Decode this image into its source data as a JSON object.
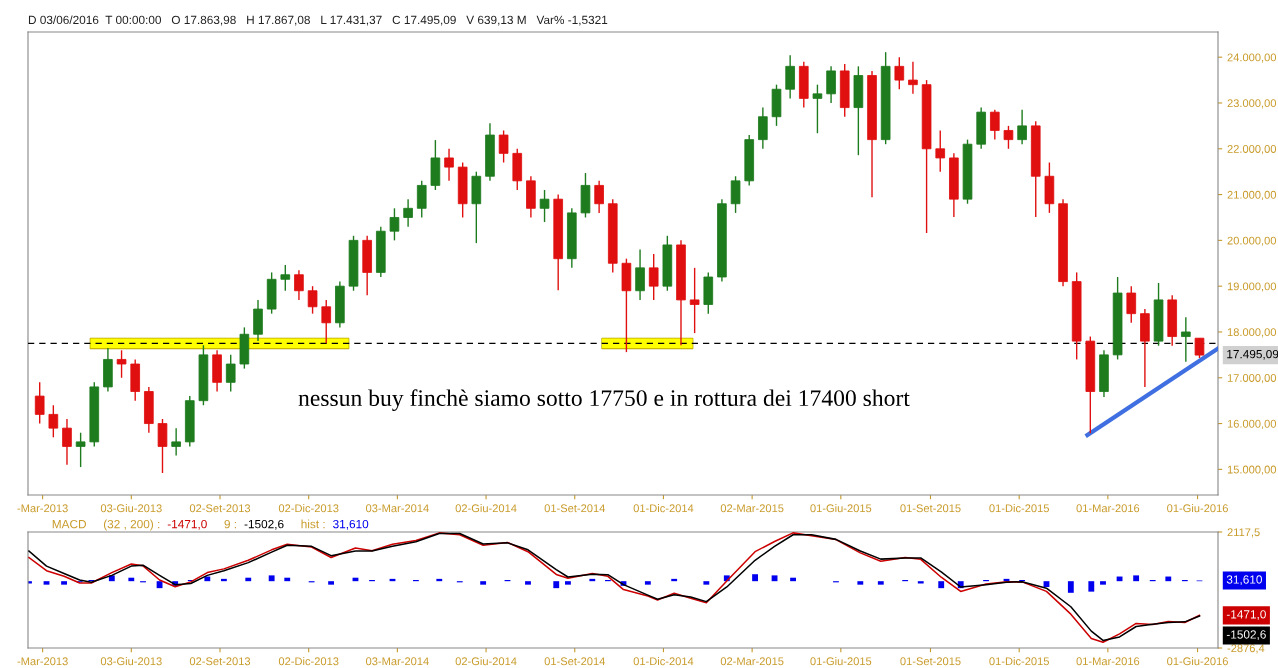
{
  "chart_data": [
    {
      "type": "candlestick",
      "subtitle": "D 03/06/2016  T 00:00:00   O 17.863,98   H 17.867,08   L 17.431,37   C 17.495,09   V 639,13 M   Var% -1,5321",
      "annotations": [
        "nessun buy finchè siamo sotto 17750 e in rottura dei 17400 short",
        "17.495,09"
      ],
      "colors": [
        "#e01010",
        "#e01010",
        "#e01010",
        "#1e7b1e",
        "#1e7b1e",
        "#1e7b1e",
        "#e01010",
        "#e01010",
        "#e01010",
        "#e01010",
        "#1e7b1e",
        "#1e7b1e",
        "#1e7b1e",
        "#e01010",
        "#1e7b1e",
        "#1e7b1e",
        "#1e7b1e",
        "#1e7b1e",
        "#1e7b1e",
        "#e01010",
        "#e01010",
        "#e01010",
        "#1e7b1e",
        "#1e7b1e",
        "#e01010",
        "#1e7b1e",
        "#1e7b1e",
        "#1e7b1e",
        "#1e7b1e",
        "#1e7b1e",
        "#e01010",
        "#e01010",
        "#1e7b1e",
        "#1e7b1e",
        "#e01010",
        "#e01010",
        "#e01010",
        "#1e7b1e",
        "#e01010",
        "#1e7b1e",
        "#1e7b1e",
        "#e01010",
        "#e01010",
        "#e01010",
        "#1e7b1e",
        "#e01010",
        "#1e7b1e",
        "#e01010",
        "#e01010",
        "#1e7b1e",
        "#1e7b1e",
        "#1e7b1e",
        "#1e7b1e",
        "#1e7b1e",
        "#1e7b1e",
        "#1e7b1e",
        "#e01010",
        "#1e7b1e",
        "#1e7b1e",
        "#e01010",
        "#1e7b1e",
        "#e01010",
        "#1e7b1e",
        "#e01010",
        "#e01010",
        "#e01010",
        "#e01010",
        "#e01010",
        "#1e7b1e",
        "#1e7b1e",
        "#e01010",
        "#e01010",
        "#1e7b1e",
        "#e01010",
        "#e01010",
        "#e01010",
        "#e01010",
        "#e01010",
        "#1e7b1e",
        "#1e7b1e",
        "#e01010",
        "#e01010",
        "#1e7b1e",
        "#e01010",
        "#1e7b1e",
        "#e01010"
      ],
      "x": [
        "2013-03-01",
        "2013-03-15",
        "2013-03-29",
        "2013-04-12",
        "2013-04-26",
        "2013-05-10",
        "2013-05-24",
        "2013-06-07",
        "2013-06-21",
        "2013-07-05",
        "2013-07-19",
        "2013-08-02",
        "2013-08-16",
        "2013-08-30",
        "2013-09-13",
        "2013-09-27",
        "2013-10-11",
        "2013-10-25",
        "2013-11-08",
        "2013-11-22",
        "2013-12-06",
        "2013-12-20",
        "2014-01-03",
        "2014-01-17",
        "2014-01-31",
        "2014-02-14",
        "2014-02-28",
        "2014-03-14",
        "2014-03-28",
        "2014-04-11",
        "2014-04-25",
        "2014-05-09",
        "2014-05-23",
        "2014-06-06",
        "2014-06-20",
        "2014-07-04",
        "2014-07-18",
        "2014-08-01",
        "2014-08-15",
        "2014-08-29",
        "2014-09-12",
        "2014-09-26",
        "2014-10-10",
        "2014-10-24",
        "2014-11-07",
        "2014-11-21",
        "2014-12-05",
        "2014-12-19",
        "2015-01-02",
        "2015-01-16",
        "2015-01-30",
        "2015-02-13",
        "2015-02-27",
        "2015-03-13",
        "2015-03-27",
        "2015-04-10",
        "2015-04-24",
        "2015-05-08",
        "2015-05-22",
        "2015-06-05",
        "2015-06-19",
        "2015-07-03",
        "2015-07-17",
        "2015-07-31",
        "2015-08-14",
        "2015-08-28",
        "2015-09-11",
        "2015-09-25",
        "2015-10-09",
        "2015-10-23",
        "2015-11-06",
        "2015-11-20",
        "2015-12-04",
        "2015-12-18",
        "2016-01-01",
        "2016-01-15",
        "2016-01-29",
        "2016-02-12",
        "2016-02-26",
        "2016-03-11",
        "2016-03-25",
        "2016-04-08",
        "2016-04-22",
        "2016-05-06",
        "2016-05-20",
        "2016-06-03"
      ],
      "ohlc": [
        [
          16600,
          16900,
          16000,
          16200
        ],
        [
          16200,
          16400,
          15700,
          15900
        ],
        [
          15900,
          16100,
          15100,
          15500
        ],
        [
          15500,
          15800,
          15050,
          15600
        ],
        [
          15600,
          16900,
          15500,
          16800
        ],
        [
          16800,
          17650,
          16700,
          17400
        ],
        [
          17400,
          17600,
          17000,
          17300
        ],
        [
          17300,
          17400,
          16500,
          16700
        ],
        [
          16700,
          16800,
          15800,
          16000
        ],
        [
          16000,
          16100,
          14920,
          15500
        ],
        [
          15500,
          15900,
          15300,
          15600
        ],
        [
          15600,
          16600,
          15500,
          16500
        ],
        [
          16500,
          17710,
          16400,
          17500
        ],
        [
          17500,
          17600,
          16700,
          16900
        ],
        [
          16900,
          17500,
          16700,
          17300
        ],
        [
          17300,
          18100,
          17200,
          17950
        ],
        [
          17950,
          18700,
          17800,
          18500
        ],
        [
          18500,
          19300,
          18400,
          19150
        ],
        [
          19150,
          19460,
          18900,
          19250
        ],
        [
          19250,
          19350,
          18700,
          18900
        ],
        [
          18900,
          19000,
          18400,
          18550
        ],
        [
          18550,
          18700,
          17760,
          18200
        ],
        [
          18200,
          19100,
          18100,
          19000
        ],
        [
          19000,
          20100,
          18900,
          20000
        ],
        [
          20000,
          20100,
          18800,
          19300
        ],
        [
          19300,
          20300,
          19200,
          20200
        ],
        [
          20200,
          20700,
          20000,
          20500
        ],
        [
          20500,
          20900,
          20300,
          20700
        ],
        [
          20700,
          21300,
          20500,
          21200
        ],
        [
          21200,
          22190,
          21100,
          21800
        ],
        [
          21800,
          22000,
          21300,
          21600
        ],
        [
          21600,
          21700,
          20500,
          20800
        ],
        [
          20800,
          21500,
          19940,
          21400
        ],
        [
          21400,
          22560,
          21300,
          22300
        ],
        [
          22300,
          22400,
          21700,
          21900
        ],
        [
          21900,
          22000,
          21100,
          21300
        ],
        [
          21300,
          21400,
          20500,
          20700
        ],
        [
          20700,
          21100,
          20400,
          20900
        ],
        [
          20900,
          21000,
          18910,
          19600
        ],
        [
          19600,
          20700,
          19400,
          20600
        ],
        [
          20600,
          21470,
          20500,
          21200
        ],
        [
          21200,
          21300,
          20600,
          20800
        ],
        [
          20800,
          20900,
          19300,
          19500
        ],
        [
          19500,
          19600,
          17560,
          18900
        ],
        [
          18900,
          19800,
          18700,
          19400
        ],
        [
          19400,
          19700,
          18700,
          19000
        ],
        [
          19000,
          20100,
          18900,
          19900
        ],
        [
          19900,
          20000,
          17710,
          18700
        ],
        [
          18700,
          19400,
          17975,
          18600
        ],
        [
          18600,
          19300,
          18400,
          19200
        ],
        [
          19200,
          20900,
          19100,
          20800
        ],
        [
          20800,
          21400,
          20600,
          21300
        ],
        [
          21300,
          22300,
          21200,
          22200
        ],
        [
          22200,
          22900,
          22000,
          22700
        ],
        [
          22700,
          23400,
          22500,
          23300
        ],
        [
          23300,
          24040,
          23100,
          23800
        ],
        [
          23800,
          23900,
          22900,
          23100
        ],
        [
          23100,
          23400,
          22340,
          23200
        ],
        [
          23200,
          23800,
          23000,
          23700
        ],
        [
          23700,
          23850,
          22700,
          22900
        ],
        [
          22900,
          23800,
          21860,
          23600
        ],
        [
          23600,
          23700,
          20940,
          22200
        ],
        [
          22200,
          24110,
          22100,
          23800
        ],
        [
          23800,
          24000,
          23300,
          23500
        ],
        [
          23500,
          23900,
          23200,
          23400
        ],
        [
          23400,
          23500,
          20160,
          22000
        ],
        [
          22000,
          22400,
          21500,
          21800
        ],
        [
          21800,
          21900,
          20510,
          20900
        ],
        [
          20900,
          22200,
          20800,
          22100
        ],
        [
          22100,
          22900,
          22000,
          22800
        ],
        [
          22800,
          22850,
          22200,
          22400
        ],
        [
          22400,
          22500,
          22000,
          22200
        ],
        [
          22200,
          22850,
          22100,
          22500
        ],
        [
          22500,
          22600,
          20510,
          21400
        ],
        [
          21400,
          21700,
          20600,
          20800
        ],
        [
          20800,
          20900,
          19000,
          19100
        ],
        [
          19100,
          19300,
          17400,
          17800
        ],
        [
          17800,
          17900,
          15790,
          16700
        ],
        [
          16700,
          17600,
          16580,
          17500
        ],
        [
          17500,
          19200,
          17400,
          18850
        ],
        [
          18850,
          19000,
          18200,
          18400
        ],
        [
          18400,
          18500,
          16800,
          17800
        ],
        [
          17800,
          19070,
          17700,
          18700
        ],
        [
          18700,
          18800,
          17700,
          17900
        ],
        [
          17900,
          18320,
          17350,
          18000
        ],
        [
          17863.98,
          17867.08,
          17431.37,
          17495.09
        ]
      ],
      "series": [
        {
          "type": "line",
          "color": "#ffff00",
          "x": [
            "2013-04-22",
            "2014-01-12"
          ],
          "values": [
            17750,
            17750
          ],
          "lower": [
            17640,
            17640
          ],
          "upper": [
            17860,
            17860
          ]
        },
        {
          "type": "line",
          "color": "#ffff00",
          "x": [
            "2014-09-29",
            "2014-12-31"
          ],
          "values": [
            17750,
            17750
          ],
          "lower": [
            17640,
            17640
          ],
          "upper": [
            17860,
            17860
          ]
        },
        {
          "type": "line",
          "color": "#3f6fe0",
          "x": [
            "2016-02-09",
            "2016-06-22"
          ],
          "values": [
            15750,
            17640
          ]
        }
      ],
      "ref_lines": [
        {
          "axis": "y",
          "value": 17750,
          "color": "#000000",
          "line_style": "dashed"
        }
      ],
      "xlim": [
        "2013-02-17",
        "2016-06-22"
      ],
      "xticks": [
        {
          "value": "2013-03-04",
          "label": "-Mar-2013"
        },
        {
          "value": "2013-06-03",
          "label": "03-Giu-2013"
        },
        {
          "value": "2013-09-02",
          "label": "02-Set-2013"
        },
        {
          "value": "2013-12-02",
          "label": "02-Dic-2013"
        },
        {
          "value": "2014-03-03",
          "label": "03-Mar-2014"
        },
        {
          "value": "2014-06-02",
          "label": "02-Giu-2014"
        },
        {
          "value": "2014-09-01",
          "label": "01-Set-2014"
        },
        {
          "value": "2014-12-01",
          "label": "01-Dic-2014"
        },
        {
          "value": "2015-03-02",
          "label": "02-Mar-2015"
        },
        {
          "value": "2015-06-01",
          "label": "01-Giu-2015"
        },
        {
          "value": "2015-09-01",
          "label": "01-Set-2015"
        },
        {
          "value": "2015-12-01",
          "label": "01-Dic-2015"
        },
        {
          "value": "2016-03-01",
          "label": "01-Mar-2016"
        },
        {
          "value": "2016-06-01",
          "label": "01-Giu-2016"
        }
      ],
      "ylim": [
        14440,
        24550
      ],
      "yticks": [
        {
          "value": 15000,
          "label": "15.000,00"
        },
        {
          "value": 16000,
          "label": "16.000,00"
        },
        {
          "value": 17000,
          "label": "17.000,00"
        },
        {
          "value": 18000,
          "label": "18.000,00"
        },
        {
          "value": 19000,
          "label": "19.000,00"
        },
        {
          "value": 20000,
          "label": "20.000,00"
        },
        {
          "value": 21000,
          "label": "21.000,00"
        },
        {
          "value": 22000,
          "label": "22.000,00"
        },
        {
          "value": 23000,
          "label": "23.000,00"
        },
        {
          "value": 24000,
          "label": "24.000,00"
        }
      ]
    },
    {
      "type": "line",
      "title": "MACD",
      "annotations": [
        "(32 , 200) :",
        "-1471,0",
        "9 :",
        "-1502,6",
        "hist :",
        "31,610",
        "-1471,0",
        "-1502,6",
        "31,610"
      ],
      "x": [
        "2013-02-18",
        "2013-03-08",
        "2013-03-26",
        "2013-04-11",
        "2013-04-23",
        "2013-05-14",
        "2013-06-03",
        "2013-06-15",
        "2013-07-02",
        "2013-07-18",
        "2013-08-03",
        "2013-08-20",
        "2013-09-06",
        "2013-10-01",
        "2013-10-25",
        "2013-11-10",
        "2013-12-05",
        "2013-12-25",
        "2014-01-19",
        "2014-02-05",
        "2014-02-26",
        "2014-03-22",
        "2014-04-15",
        "2014-05-06",
        "2014-05-30",
        "2014-06-24",
        "2014-07-15",
        "2014-08-13",
        "2014-08-25",
        "2014-09-19",
        "2014-10-05",
        "2014-10-21",
        "2014-11-15",
        "2014-11-25",
        "2014-12-12",
        "2014-12-29",
        "2015-01-14",
        "2015-02-04",
        "2015-03-05",
        "2015-03-25",
        "2015-04-13",
        "2015-05-02",
        "2015-05-27",
        "2015-06-21",
        "2015-07-12",
        "2015-08-06",
        "2015-08-22",
        "2015-09-12",
        "2015-10-02",
        "2015-10-28",
        "2015-11-18",
        "2015-12-04",
        "2015-12-29",
        "2016-01-23",
        "2016-02-13",
        "2016-02-25",
        "2016-03-13",
        "2016-03-30",
        "2016-04-16",
        "2016-05-02",
        "2016-05-19",
        "2016-06-03"
      ],
      "series": [
        {
          "type": "line",
          "color": "#cc0000",
          "values": [
            1020,
            450,
            210,
            -80,
            -80,
            370,
            740,
            660,
            50,
            -240,
            -30,
            370,
            530,
            900,
            1350,
            1590,
            1470,
            1020,
            1430,
            1310,
            1590,
            1750,
            2080,
            2000,
            1550,
            1670,
            1270,
            290,
            130,
            330,
            210,
            -360,
            -640,
            -810,
            -520,
            -730,
            -930,
            10,
            1270,
            1710,
            2080,
            1960,
            1790,
            1220,
            860,
            1020,
            940,
            170,
            -440,
            -120,
            -30,
            -30,
            -440,
            -1420,
            -2470,
            -2630,
            -2270,
            -1820,
            -1860,
            -1740,
            -1780,
            -1470
          ]
        },
        {
          "type": "line",
          "color": "#000000",
          "values": [
            1300,
            650,
            330,
            50,
            -50,
            250,
            650,
            690,
            250,
            -150,
            -100,
            250,
            450,
            800,
            1250,
            1550,
            1500,
            1100,
            1300,
            1300,
            1500,
            1700,
            2050,
            2050,
            1600,
            1650,
            1350,
            500,
            180,
            300,
            280,
            -150,
            -600,
            -780,
            -580,
            -680,
            -880,
            -250,
            900,
            1500,
            2000,
            2000,
            1800,
            1300,
            950,
            1000,
            1000,
            400,
            -250,
            -150,
            -50,
            -20,
            -300,
            -1100,
            -2150,
            -2550,
            -2400,
            -1950,
            -1850,
            -1780,
            -1750,
            -1500
          ]
        },
        {
          "type": "bar",
          "color": "#0000ee",
          "values": [
            -100,
            -150,
            -150,
            -50,
            50,
            250,
            150,
            -50,
            -300,
            -200,
            50,
            200,
            100,
            150,
            250,
            150,
            -50,
            -150,
            150,
            50,
            100,
            50,
            100,
            -50,
            -150,
            50,
            -150,
            -300,
            -150,
            100,
            50,
            -200,
            -150,
            0,
            100,
            0,
            -150,
            250,
            300,
            250,
            150,
            0,
            -50,
            -150,
            -150,
            50,
            -100,
            -300,
            -300,
            50,
            100,
            50,
            -250,
            -500,
            -450,
            -150,
            200,
            250,
            50,
            200,
            50,
            30
          ]
        }
      ],
      "xlim": [
        "2013-02-17",
        "2016-06-22"
      ],
      "xticks": [
        {
          "value": "2013-03-04",
          "label": "-Mar-2013"
        },
        {
          "value": "2013-06-03",
          "label": "03-Giu-2013"
        },
        {
          "value": "2013-09-02",
          "label": "02-Set-2013"
        },
        {
          "value": "2013-12-02",
          "label": "02-Dic-2013"
        },
        {
          "value": "2014-03-03",
          "label": "03-Mar-2014"
        },
        {
          "value": "2014-06-02",
          "label": "02-Giu-2014"
        },
        {
          "value": "2014-09-01",
          "label": "01-Set-2014"
        },
        {
          "value": "2014-12-01",
          "label": "01-Dic-2014"
        },
        {
          "value": "2015-03-02",
          "label": "02-Mar-2015"
        },
        {
          "value": "2015-06-01",
          "label": "01-Giu-2015"
        },
        {
          "value": "2015-09-01",
          "label": "01-Set-2015"
        },
        {
          "value": "2015-12-01",
          "label": "01-Dic-2015"
        },
        {
          "value": "2016-03-01",
          "label": "01-Mar-2016"
        },
        {
          "value": "2016-06-01",
          "label": "01-Giu-2016"
        }
      ],
      "ylim": [
        -2876.4,
        2117.5
      ],
      "yticks": [
        {
          "value": 2117.5,
          "label": "2117,5"
        },
        {
          "value": -2876.4,
          "label": "-2876,4"
        }
      ]
    }
  ]
}
